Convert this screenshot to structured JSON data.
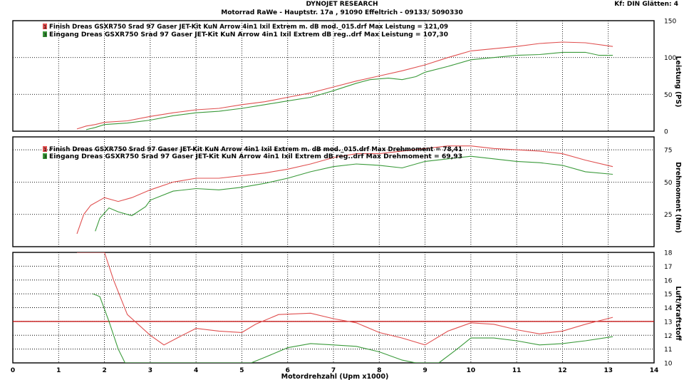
{
  "header": {
    "title": "DYNOJET RESEARCH",
    "address": "Motorrad RaWe  - Hauptstr. 17a , 91090 Effeltrich - 09133/ 5090330",
    "right": "Kf: DIN  Glätten: 4"
  },
  "colors": {
    "finish": "#e05050",
    "eingang": "#3a9a3a",
    "reference": "#c00000"
  },
  "chart_data": [
    {
      "type": "line",
      "ylabel": "Leistung (PS)",
      "ylim": [
        0,
        150
      ],
      "yticks": [
        0,
        50,
        100,
        150
      ],
      "xlim": [
        0,
        14
      ],
      "legend": [
        {
          "marker": "1",
          "text": "Finish Dreas GSXR750 Srad 97 Gaser JET-Kit KuN Arrow 4in1 Ixil Extrem m. dB mod._015.drf Max Leistung = 121,09"
        },
        {
          "marker": "3",
          "text": "Eingang Dreas GSXR750 Srad 97 Gaser JET-Kit KuN Arrow 4in1 Ixil Extrem dB reg..drf Max Leistung = 107,30"
        }
      ],
      "series": [
        {
          "key": "finish",
          "points": [
            [
              1.4,
              3
            ],
            [
              1.6,
              7
            ],
            [
              1.8,
              9
            ],
            [
              2.0,
              12
            ],
            [
              2.5,
              14
            ],
            [
              3.0,
              20
            ],
            [
              3.5,
              25
            ],
            [
              4.0,
              29
            ],
            [
              4.5,
              31
            ],
            [
              5.0,
              36
            ],
            [
              5.5,
              40
            ],
            [
              6.0,
              46
            ],
            [
              6.5,
              52
            ],
            [
              7.0,
              60
            ],
            [
              7.5,
              68
            ],
            [
              8.0,
              75
            ],
            [
              8.5,
              82
            ],
            [
              9.0,
              90
            ],
            [
              9.5,
              100
            ],
            [
              10.0,
              109
            ],
            [
              10.5,
              112
            ],
            [
              11.0,
              115
            ],
            [
              11.5,
              119
            ],
            [
              12.0,
              121
            ],
            [
              12.5,
              120
            ],
            [
              13.1,
              115
            ]
          ]
        },
        {
          "key": "eingang",
          "points": [
            [
              1.6,
              2
            ],
            [
              1.8,
              5
            ],
            [
              2.0,
              9
            ],
            [
              2.5,
              11
            ],
            [
              3.0,
              15
            ],
            [
              3.5,
              21
            ],
            [
              4.0,
              25
            ],
            [
              4.5,
              27
            ],
            [
              5.0,
              31
            ],
            [
              5.5,
              36
            ],
            [
              6.0,
              41
            ],
            [
              6.5,
              46
            ],
            [
              7.0,
              55
            ],
            [
              7.5,
              65
            ],
            [
              7.8,
              70
            ],
            [
              8.2,
              72
            ],
            [
              8.5,
              70
            ],
            [
              8.8,
              74
            ],
            [
              9.0,
              80
            ],
            [
              9.5,
              88
            ],
            [
              10.0,
              97
            ],
            [
              10.5,
              100
            ],
            [
              11.0,
              103
            ],
            [
              11.5,
              104
            ],
            [
              12.0,
              107
            ],
            [
              12.5,
              107
            ],
            [
              12.8,
              103
            ],
            [
              13.1,
              103
            ]
          ]
        }
      ]
    },
    {
      "type": "line",
      "ylabel": "Drehmoment (Nm)",
      "ylim": [
        0,
        85
      ],
      "yticks": [
        25,
        50,
        75
      ],
      "xlim": [
        0,
        14
      ],
      "legend": [
        {
          "marker": "1",
          "text": "Finish Dreas GSXR750 Srad 97 Gaser JET-Kit KuN Arrow 4in1 Ixil Extrem m. dB mod._015.drf Max Drehmoment = 78,41"
        },
        {
          "marker": "3",
          "text": "Eingang Dreas GSXR750 Srad 97 Gaser JET-Kit KuN Arrow 4in1 Ixil Extrem dB reg..drf Max Drehmoment = 69,93"
        }
      ],
      "series": [
        {
          "key": "finish",
          "points": [
            [
              1.4,
              10
            ],
            [
              1.55,
              25
            ],
            [
              1.7,
              32
            ],
            [
              1.9,
              36
            ],
            [
              2.0,
              38
            ],
            [
              2.3,
              35
            ],
            [
              2.6,
              38
            ],
            [
              3.0,
              44
            ],
            [
              3.5,
              50
            ],
            [
              4.0,
              53
            ],
            [
              4.5,
              53
            ],
            [
              5.0,
              55
            ],
            [
              5.5,
              57
            ],
            [
              6.0,
              60
            ],
            [
              6.5,
              64
            ],
            [
              7.0,
              69
            ],
            [
              7.5,
              72
            ],
            [
              8.0,
              72
            ],
            [
              8.5,
              74
            ],
            [
              9.0,
              76
            ],
            [
              9.5,
              78
            ],
            [
              10.0,
              78
            ],
            [
              10.5,
              76
            ],
            [
              11.0,
              75
            ],
            [
              11.5,
              74
            ],
            [
              12.0,
              72
            ],
            [
              12.5,
              67
            ],
            [
              13.1,
              62
            ]
          ]
        },
        {
          "key": "eingang",
          "points": [
            [
              1.8,
              12
            ],
            [
              1.9,
              22
            ],
            [
              2.1,
              30
            ],
            [
              2.3,
              27
            ],
            [
              2.6,
              24
            ],
            [
              2.9,
              31
            ],
            [
              3.0,
              36
            ],
            [
              3.5,
              43
            ],
            [
              4.0,
              45
            ],
            [
              4.5,
              44
            ],
            [
              5.0,
              46
            ],
            [
              5.5,
              49
            ],
            [
              6.0,
              53
            ],
            [
              6.5,
              58
            ],
            [
              7.0,
              62
            ],
            [
              7.5,
              64
            ],
            [
              8.0,
              63
            ],
            [
              8.5,
              61
            ],
            [
              9.0,
              66
            ],
            [
              9.5,
              68
            ],
            [
              10.0,
              70
            ],
            [
              10.5,
              68
            ],
            [
              11.0,
              66
            ],
            [
              11.5,
              65
            ],
            [
              12.0,
              63
            ],
            [
              12.5,
              58
            ],
            [
              13.1,
              56
            ]
          ]
        }
      ]
    },
    {
      "type": "line",
      "ylabel": "Luft/Kraftstoff",
      "ylim": [
        10,
        18
      ],
      "yticks": [
        10,
        11,
        12,
        13,
        14,
        15,
        16,
        17,
        18
      ],
      "xlim": [
        0,
        14
      ],
      "xticks": [
        0,
        1,
        2,
        3,
        4,
        5,
        6,
        7,
        8,
        9,
        10,
        11,
        12,
        13,
        14
      ],
      "xlabel": "Motordrehzahl (Upm x1000)",
      "reference_line": 13,
      "series": [
        {
          "key": "finish",
          "points": [
            [
              1.4,
              18
            ],
            [
              2.0,
              18
            ],
            [
              2.2,
              16
            ],
            [
              2.5,
              13.5
            ],
            [
              3.0,
              12
            ],
            [
              3.3,
              11.3
            ],
            [
              3.7,
              12
            ],
            [
              4.0,
              12.5
            ],
            [
              4.5,
              12.3
            ],
            [
              5.0,
              12.2
            ],
            [
              5.3,
              12.8
            ],
            [
              5.8,
              13.5
            ],
            [
              6.5,
              13.6
            ],
            [
              7.0,
              13.2
            ],
            [
              7.5,
              12.9
            ],
            [
              8.0,
              12.2
            ],
            [
              8.5,
              11.8
            ],
            [
              9.0,
              11.3
            ],
            [
              9.5,
              12.3
            ],
            [
              10.0,
              12.9
            ],
            [
              10.5,
              12.8
            ],
            [
              11.0,
              12.4
            ],
            [
              11.5,
              12.1
            ],
            [
              12.0,
              12.3
            ],
            [
              12.5,
              12.8
            ],
            [
              13.1,
              13.3
            ]
          ]
        },
        {
          "key": "eingang",
          "points": [
            [
              1.75,
              15
            ],
            [
              1.9,
              14.8
            ],
            [
              2.1,
              13
            ],
            [
              2.3,
              11
            ],
            [
              2.45,
              10
            ],
            [
              5.2,
              10
            ],
            [
              5.5,
              10.4
            ],
            [
              6.0,
              11.1
            ],
            [
              6.5,
              11.4
            ],
            [
              7.0,
              11.3
            ],
            [
              7.5,
              11.2
            ],
            [
              8.0,
              10.8
            ],
            [
              8.5,
              10.2
            ],
            [
              8.8,
              10.0
            ],
            [
              9.3,
              10.0
            ],
            [
              9.7,
              11
            ],
            [
              10.0,
              11.8
            ],
            [
              10.5,
              11.8
            ],
            [
              11.0,
              11.6
            ],
            [
              11.5,
              11.3
            ],
            [
              12.0,
              11.4
            ],
            [
              12.5,
              11.6
            ],
            [
              13.1,
              11.9
            ]
          ]
        }
      ]
    }
  ]
}
